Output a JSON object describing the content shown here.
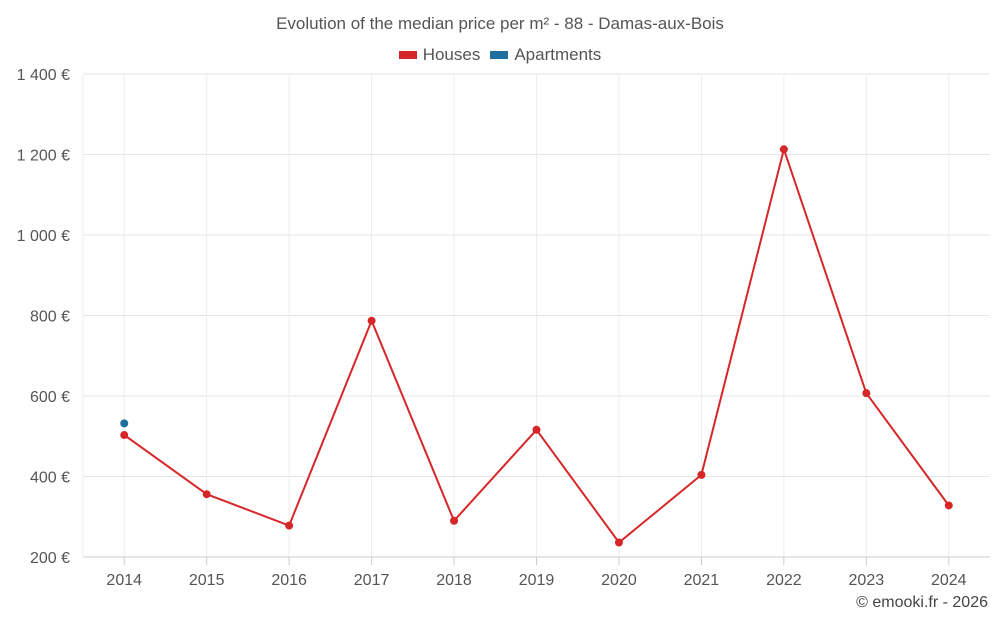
{
  "chart_data": {
    "type": "line",
    "title": "Evolution of the median price per m² - 88 - Damas-aux-Bois",
    "x": [
      "2014",
      "2015",
      "2016",
      "2017",
      "2018",
      "2019",
      "2020",
      "2021",
      "2022",
      "2023",
      "2024"
    ],
    "series": [
      {
        "name": "Houses",
        "color": "#d62728",
        "values": [
          503,
          356,
          278,
          787,
          290,
          516,
          236,
          404,
          1213,
          607,
          328
        ]
      },
      {
        "name": "Apartments",
        "color": "#1f6f9e",
        "values": [
          532,
          null,
          null,
          null,
          null,
          null,
          null,
          null,
          null,
          null,
          null
        ]
      }
    ],
    "ylim": [
      200,
      1400
    ],
    "yticks": [
      200,
      400,
      600,
      800,
      1000,
      1200,
      1400
    ],
    "ytick_labels": [
      "200 €",
      "400 €",
      "600 €",
      "800 €",
      "1 000 €",
      "1 200 €",
      "1 400 €"
    ],
    "grid": true,
    "legend_position": "top"
  },
  "credit": "© emooki.fr - 2026"
}
